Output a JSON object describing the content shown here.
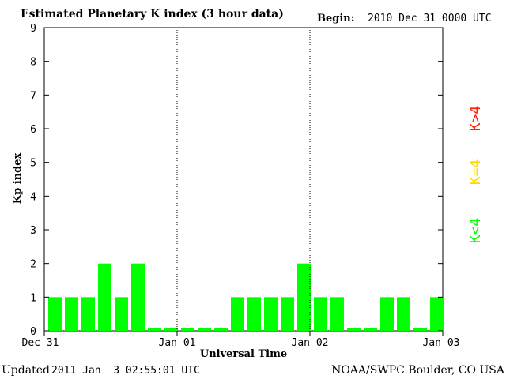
{
  "header": {
    "title": "Estimated Planetary K index (3 hour data)",
    "begin_label": "Begin:",
    "begin_value": "2010 Dec 31 0000 UTC"
  },
  "footer": {
    "updated_label": "Updated",
    "updated_value": "2011 Jan  3 02:55:01 UTC",
    "source": "NOAA/SWPC Boulder, CO USA"
  },
  "legend": {
    "items": [
      {
        "label": "K>4",
        "color": "#ff2000"
      },
      {
        "label": "K=4",
        "color": "#ffd700"
      },
      {
        "label": "K<4",
        "color": "#00ff00"
      }
    ]
  },
  "chart_data": {
    "type": "bar",
    "title": "Estimated Planetary K index (3 hour data)",
    "xlabel": "Universal Time",
    "ylabel": "Kp index",
    "ylim": [
      0,
      9
    ],
    "yticks": [
      0,
      1,
      2,
      3,
      4,
      5,
      6,
      7,
      8,
      9
    ],
    "xticks": [
      "Dec 31",
      "Jan 01",
      "Jan 02",
      "Jan 03"
    ],
    "day_separators": [
      "Jan 01",
      "Jan 02"
    ],
    "bar_color": "#00ff00",
    "values": [
      1,
      1,
      1,
      2,
      1,
      2,
      0,
      0,
      0,
      0,
      0,
      1,
      1,
      1,
      1,
      2,
      1,
      1,
      0,
      0,
      1,
      1,
      0,
      1
    ]
  }
}
